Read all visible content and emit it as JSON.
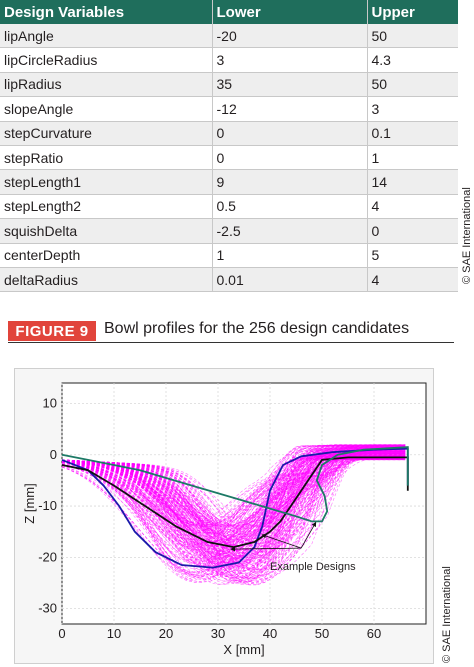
{
  "table": {
    "headers": [
      "Design Variables",
      "Lower",
      "Upper"
    ],
    "rows": [
      {
        "name": "lipAngle",
        "lower": "-20",
        "upper": "50"
      },
      {
        "name": "lipCircleRadius",
        "lower": "3",
        "upper": "4.3"
      },
      {
        "name": "lipRadius",
        "lower": "35",
        "upper": "50"
      },
      {
        "name": "slopeAngle",
        "lower": "-12",
        "upper": "3"
      },
      {
        "name": "stepCurvature",
        "lower": "0",
        "upper": "0.1"
      },
      {
        "name": "stepRatio",
        "lower": "0",
        "upper": "1"
      },
      {
        "name": "stepLength1",
        "lower": "9",
        "upper": "14"
      },
      {
        "name": "stepLength2",
        "lower": "0.5",
        "upper": "4"
      },
      {
        "name": "squishDelta",
        "lower": "-2.5",
        "upper": "0"
      },
      {
        "name": "centerDepth",
        "lower": "1",
        "upper": "5"
      },
      {
        "name": "deltaRadius",
        "lower": "0.01",
        "upper": "4"
      }
    ],
    "header_color": "#1f6e5c"
  },
  "credit_top": "© SAE International",
  "figure": {
    "label": "FIGURE 9",
    "caption": "Bowl profiles for the 256 design candidates",
    "label_color": "#e1443b"
  },
  "credit_bottom": "© SAE International",
  "chart_data": {
    "type": "line",
    "xlabel": "X [mm]",
    "ylabel": "Z [mm]",
    "xlim": [
      0,
      70
    ],
    "ylim": [
      -33,
      14
    ],
    "xticks": [
      0,
      10,
      20,
      30,
      40,
      50,
      60
    ],
    "yticks": [
      10,
      0,
      -10,
      -20,
      -30
    ],
    "grid": true,
    "candidate_count": 256,
    "candidate_color": "#ff00ff",
    "annotation": "Example Designs",
    "series": [
      {
        "color": "#1a1aaa",
        "points": [
          [
            0,
            -1
          ],
          [
            5,
            -3
          ],
          [
            8,
            -6
          ],
          [
            11,
            -10
          ],
          [
            14,
            -15
          ],
          [
            18,
            -19
          ],
          [
            23,
            -21.5
          ],
          [
            29,
            -22
          ],
          [
            34,
            -21
          ],
          [
            37,
            -18
          ],
          [
            38.5,
            -14
          ],
          [
            40,
            -7
          ],
          [
            42.5,
            -2
          ],
          [
            46,
            -0.3
          ],
          [
            52,
            0.5
          ],
          [
            60,
            1
          ],
          [
            66.5,
            1.2
          ],
          [
            66.5,
            -6
          ]
        ]
      },
      {
        "color": "#111111",
        "points": [
          [
            0,
            -2
          ],
          [
            5,
            -3
          ],
          [
            10,
            -6
          ],
          [
            16,
            -10
          ],
          [
            22,
            -14
          ],
          [
            28,
            -17
          ],
          [
            33,
            -18
          ],
          [
            37,
            -17
          ],
          [
            40,
            -15
          ],
          [
            42,
            -13
          ],
          [
            44,
            -10
          ],
          [
            46,
            -7
          ],
          [
            48,
            -4
          ],
          [
            50,
            -1
          ],
          [
            55,
            -0.5
          ],
          [
            66.5,
            -0.5
          ],
          [
            66.5,
            -7
          ]
        ]
      },
      {
        "color": "#1d7a66",
        "points": [
          [
            0,
            0
          ],
          [
            5,
            -1
          ],
          [
            15,
            -3
          ],
          [
            25,
            -6
          ],
          [
            35,
            -9
          ],
          [
            45,
            -12
          ],
          [
            48,
            -13
          ],
          [
            50,
            -13
          ],
          [
            51,
            -11
          ],
          [
            50.5,
            -8
          ],
          [
            49,
            -5
          ],
          [
            50,
            -2
          ],
          [
            53,
            0
          ],
          [
            58,
            1
          ],
          [
            66.5,
            1.5
          ],
          [
            66.5,
            -6
          ]
        ]
      }
    ]
  }
}
